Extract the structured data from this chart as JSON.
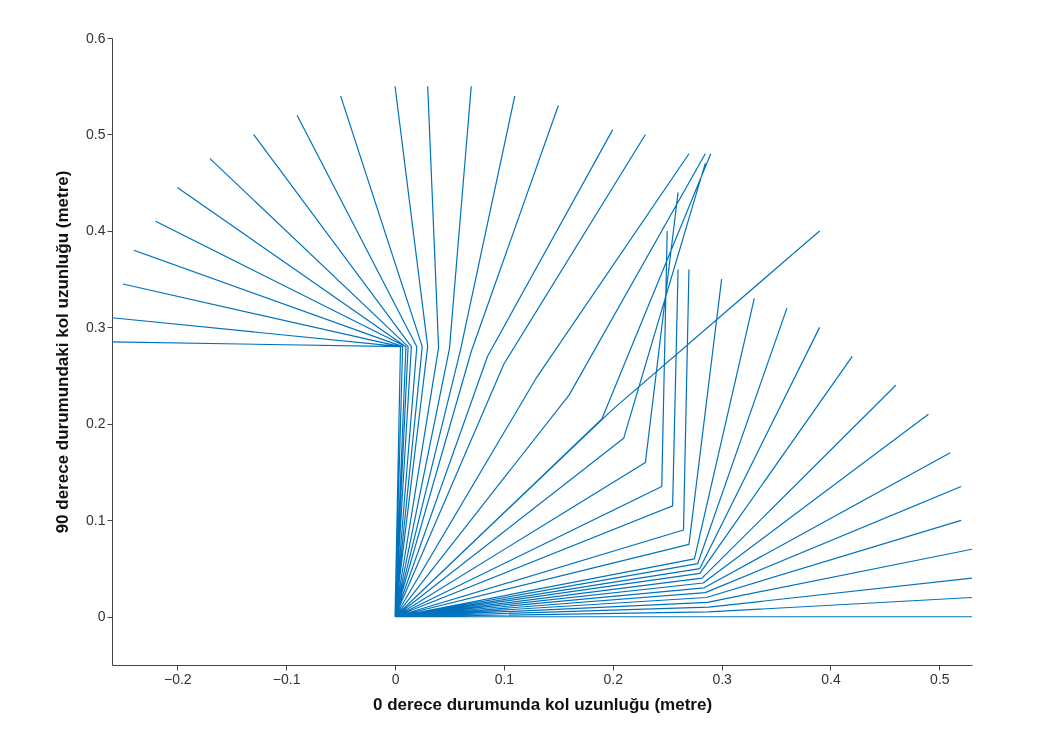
{
  "chart_data": {
    "type": "line",
    "xlabel": "0 derece durumunda kol uzunluğu (metre)",
    "ylabel": "90 derece durumundaki kol uzunluğu (metre)",
    "xlim": [
      -0.26,
      0.53
    ],
    "ylim": [
      -0.05,
      0.6
    ],
    "xticks": [
      -0.2,
      -0.1,
      0,
      0.1,
      0.2,
      0.3,
      0.4,
      0.5
    ],
    "yticks": [
      0,
      0.1,
      0.2,
      0.3,
      0.4,
      0.5,
      0.6
    ],
    "grid": false,
    "marker": "none",
    "line_style": "solid",
    "series": [
      {
        "color": "#0072bd",
        "x": [
          0,
          0.005,
          -0.26,
          null,
          0,
          0.005,
          -0.26,
          null,
          0,
          0.005,
          -0.25,
          null,
          0,
          0.007,
          -0.24,
          null,
          0,
          0.01,
          -0.22,
          null,
          0,
          0.01,
          -0.2,
          null,
          0,
          0.012,
          -0.17,
          null,
          0,
          0.015,
          -0.13,
          null,
          0,
          0.02,
          -0.09,
          null,
          0,
          0.025,
          -0.05,
          null,
          0,
          0.03,
          0,
          null,
          0,
          0.04,
          0.03,
          null,
          0,
          0.05,
          0.07,
          null,
          0,
          0.06,
          0.11,
          null,
          0,
          0.07,
          0.15,
          null,
          0,
          0.085,
          0.2,
          null,
          0,
          0.1,
          0.23,
          null,
          0,
          0.13,
          0.27,
          null,
          0,
          0.16,
          0.285,
          null,
          0,
          0.19,
          0.29,
          null,
          0,
          0.2,
          0.39,
          null,
          0,
          0.21,
          0.285,
          null,
          0,
          0.23,
          0.26,
          null,
          0,
          0.245,
          0.25,
          null,
          0,
          0.255,
          0.26,
          null,
          0,
          0.265,
          0.27,
          null,
          0,
          0.27,
          0.3,
          null,
          0,
          0.275,
          0.33,
          null,
          0,
          0.278,
          0.36,
          null,
          0,
          0.28,
          0.39,
          null,
          0,
          0.28,
          0.42,
          null,
          0,
          0.282,
          0.46,
          null,
          0,
          0.283,
          0.49,
          null,
          0,
          0.284,
          0.51,
          null,
          0,
          0.285,
          0.52,
          null,
          0,
          0.286,
          0.52,
          null,
          0,
          0.287,
          0.53,
          null,
          0,
          0.288,
          0.53,
          null,
          0,
          0.288,
          0.53,
          null,
          0,
          0.29,
          0.53
        ],
        "values": [
          0,
          0.28,
          0.285,
          null,
          0,
          0.28,
          0.31,
          null,
          0,
          0.28,
          0.345,
          null,
          0,
          0.28,
          0.38,
          null,
          0,
          0.28,
          0.41,
          null,
          0,
          0.28,
          0.445,
          null,
          0,
          0.28,
          0.475,
          null,
          0,
          0.28,
          0.5,
          null,
          0,
          0.28,
          0.52,
          null,
          0,
          0.28,
          0.54,
          null,
          0,
          0.28,
          0.55,
          null,
          0,
          0.279,
          0.55,
          null,
          0,
          0.278,
          0.55,
          null,
          0,
          0.276,
          0.54,
          null,
          0,
          0.275,
          0.53,
          null,
          0,
          0.27,
          0.505,
          null,
          0,
          0.262,
          0.5,
          null,
          0,
          0.248,
          0.48,
          null,
          0,
          0.23,
          0.48,
          null,
          0,
          0.205,
          0.48,
          null,
          0,
          0.215,
          0.4,
          null,
          0,
          0.185,
          0.47,
          null,
          0,
          0.16,
          0.44,
          null,
          0,
          0.135,
          0.4,
          null,
          0,
          0.115,
          0.36,
          null,
          0,
          0.09,
          0.36,
          null,
          0,
          0.075,
          0.35,
          null,
          0,
          0.06,
          0.33,
          null,
          0,
          0.055,
          0.32,
          null,
          0,
          0.05,
          0.3,
          null,
          0,
          0.045,
          0.27,
          null,
          0,
          0.04,
          0.24,
          null,
          0,
          0.035,
          0.21,
          null,
          0,
          0.03,
          0.17,
          null,
          0,
          0.025,
          0.135,
          null,
          0,
          0.02,
          0.1,
          null,
          0,
          0.015,
          0.07,
          null,
          0,
          0.01,
          0.04,
          null,
          0,
          0.005,
          0.02,
          null,
          0,
          0,
          0
        ]
      }
    ]
  }
}
